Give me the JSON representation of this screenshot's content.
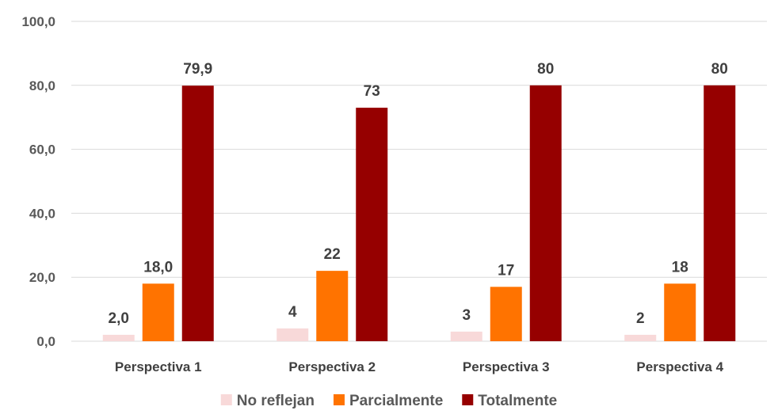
{
  "chart_data": {
    "type": "bar",
    "categories": [
      "Perspectiva 1",
      "Perspectiva 2",
      "Perspectiva 3",
      "Perspectiva 4"
    ],
    "series": [
      {
        "name": "No reflejan",
        "color": "#f8d9d9",
        "values": [
          2.0,
          4,
          3,
          2
        ],
        "labels": [
          "2,0",
          "4",
          "3",
          "2"
        ]
      },
      {
        "name": "Parcialmente",
        "color": "#ff7300",
        "values": [
          18.0,
          22,
          17,
          18
        ],
        "labels": [
          "18,0",
          "22",
          "17",
          "18"
        ]
      },
      {
        "name": "Totalmente",
        "color": "#960000",
        "values": [
          79.9,
          73,
          80,
          80
        ],
        "labels": [
          "79,9",
          "73",
          "80",
          "80"
        ]
      }
    ],
    "yticks": [
      "0,0",
      "20,0",
      "40,0",
      "60,0",
      "80,0",
      "100,0"
    ],
    "ylim": [
      0,
      100
    ],
    "grid": true,
    "legend_position": "bottom"
  }
}
